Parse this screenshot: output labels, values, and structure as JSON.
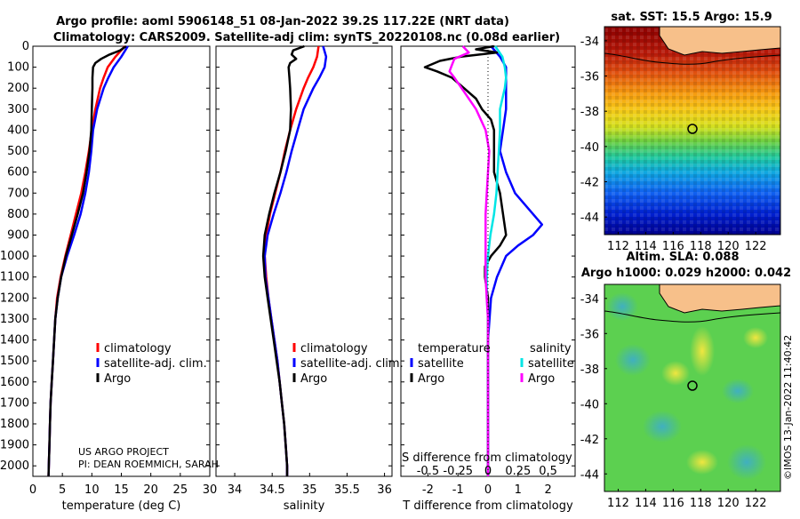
{
  "title": {
    "line1": "Argo profile: aoml 5906148_51 08-Jan-2022 39.2S 117.22E (NRT data)",
    "line2": "Climatology: CARS2009. Satellite-adj clim: synTS_20220108.nc (0.08d earlier)"
  },
  "colors": {
    "climatology": "#ff0000",
    "satellite": "#0000ff",
    "argo": "#000000",
    "sat_salinity": "#00e5e5",
    "argo_salinity": "#ff00ff"
  },
  "chart_data": [
    {
      "type": "line",
      "panel": "temperature",
      "xlabel": "temperature (deg C)",
      "ylabel": "",
      "xlim": [
        0,
        30
      ],
      "ylim": [
        2050,
        0
      ],
      "xticks": [
        "0",
        "5",
        "10",
        "15",
        "20",
        "25",
        "30"
      ],
      "yticks": [
        "0",
        "100",
        "200",
        "300",
        "400",
        "500",
        "600",
        "700",
        "800",
        "900",
        "1000",
        "1100",
        "1200",
        "1300",
        "1400",
        "1500",
        "1600",
        "1700",
        "1800",
        "1900",
        "2000"
      ],
      "legend": [
        "climatology",
        "satellite-adj. clim.",
        "Argo"
      ],
      "legend_position": "lower-right",
      "annotation": [
        "US ARGO PROJECT",
        "PI: DEAN ROEMMICH, SARAH"
      ],
      "series": [
        {
          "name": "climatology",
          "color": "red",
          "depth": [
            0,
            50,
            100,
            150,
            200,
            300,
            400,
            500,
            600,
            700,
            800,
            900,
            1000,
            1100,
            1200,
            1300,
            1400,
            1500,
            1600,
            1700,
            1800,
            1900,
            2000,
            2050
          ],
          "values": [
            15.6,
            14.0,
            12.7,
            12.0,
            11.4,
            10.6,
            10.0,
            9.5,
            8.9,
            8.2,
            7.3,
            6.4,
            5.5,
            4.7,
            4.1,
            3.8,
            3.6,
            3.4,
            3.2,
            3.0,
            2.9,
            2.8,
            2.7,
            2.65
          ]
        },
        {
          "name": "satellite-adj. clim.",
          "color": "blue",
          "depth": [
            0,
            50,
            100,
            150,
            200,
            300,
            400,
            500,
            600,
            700,
            800,
            900,
            1000,
            1100,
            1200,
            1300,
            1400,
            1500,
            1600,
            1700,
            1800,
            1900,
            2000,
            2050
          ],
          "values": [
            16.1,
            15.0,
            13.7,
            12.8,
            12.0,
            10.9,
            10.2,
            9.9,
            9.5,
            8.9,
            8.1,
            7.0,
            5.8,
            4.8,
            4.2,
            3.8,
            3.6,
            3.4,
            3.2,
            3.0,
            2.9,
            2.8,
            2.7,
            2.65
          ]
        },
        {
          "name": "Argo",
          "color": "black",
          "depth": [
            0,
            20,
            40,
            60,
            80,
            100,
            150,
            200,
            300,
            400,
            500,
            600,
            700,
            800,
            900,
            1000,
            1100,
            1200,
            1300,
            1400,
            1500,
            1600,
            1700,
            1800,
            1900,
            2000,
            2050
          ],
          "values": [
            15.8,
            14.8,
            13.0,
            11.6,
            10.6,
            10.2,
            10.1,
            10.1,
            10.0,
            9.9,
            9.6,
            9.1,
            8.5,
            7.6,
            6.6,
            5.6,
            4.8,
            4.2,
            3.8,
            3.6,
            3.4,
            3.2,
            3.0,
            2.9,
            2.8,
            2.7,
            2.65
          ]
        }
      ]
    },
    {
      "type": "line",
      "panel": "salinity",
      "xlabel": "salinity",
      "xlim": [
        33.75,
        36.1
      ],
      "ylim": [
        2050,
        0
      ],
      "xticks": [
        "34",
        "34.5",
        "35",
        "35.5",
        "36"
      ],
      "legend": [
        "climatology",
        "satellite-adj. clim.",
        "Argo"
      ],
      "legend_position": "lower-right",
      "series": [
        {
          "name": "climatology",
          "color": "red",
          "depth": [
            0,
            50,
            100,
            150,
            200,
            300,
            400,
            500,
            600,
            700,
            800,
            900,
            1000,
            1100,
            1200,
            1300,
            1400,
            1500,
            1600,
            1700,
            1800,
            1900,
            2000,
            2050
          ],
          "values": [
            35.12,
            35.1,
            35.05,
            34.98,
            34.92,
            34.82,
            34.74,
            34.67,
            34.61,
            34.54,
            34.47,
            34.42,
            34.4,
            34.42,
            34.45,
            34.49,
            34.53,
            34.57,
            34.6,
            34.63,
            34.66,
            34.68,
            34.7,
            34.7
          ]
        },
        {
          "name": "satellite-adj. clim.",
          "color": "blue",
          "depth": [
            0,
            50,
            100,
            150,
            200,
            300,
            400,
            500,
            600,
            700,
            800,
            900,
            1000,
            1100,
            1200,
            1300,
            1400,
            1500,
            1600,
            1700,
            1800,
            1900,
            2000,
            2050
          ],
          "values": [
            35.18,
            35.22,
            35.2,
            35.13,
            35.05,
            34.92,
            34.84,
            34.76,
            34.69,
            34.61,
            34.52,
            34.44,
            34.4,
            34.41,
            34.45,
            34.49,
            34.53,
            34.57,
            34.6,
            34.63,
            34.66,
            34.68,
            34.7,
            34.7
          ]
        },
        {
          "name": "Argo",
          "color": "black",
          "depth": [
            0,
            20,
            40,
            60,
            80,
            100,
            150,
            200,
            300,
            400,
            500,
            600,
            700,
            800,
            900,
            1000,
            1100,
            1200,
            1300,
            1400,
            1500,
            1600,
            1700,
            1800,
            1900,
            2000,
            2050
          ],
          "values": [
            34.93,
            34.78,
            34.76,
            34.82,
            34.74,
            34.72,
            34.73,
            34.74,
            34.75,
            34.74,
            34.68,
            34.61,
            34.53,
            34.46,
            34.4,
            34.38,
            34.4,
            34.44,
            34.48,
            34.52,
            34.56,
            34.6,
            34.63,
            34.66,
            34.68,
            34.7,
            34.7
          ]
        }
      ]
    },
    {
      "type": "line",
      "panel": "difference",
      "xlabel": "T difference from climatology",
      "xlim": [
        -2.9,
        2.9
      ],
      "ylim": [
        2050,
        0
      ],
      "xticks": [
        "-2",
        "-1",
        "0",
        "1",
        "2"
      ],
      "secondary_axis_label": "S difference from climatology",
      "secondary_xticks": [
        "-0.5",
        "-0.25",
        "0",
        "0.25",
        "0.5"
      ],
      "legend_left_title": "temperature",
      "legend_right_title": "salinity",
      "legend_left": [
        "satellite",
        "Argo"
      ],
      "legend_right": [
        "satellite",
        "Argo"
      ],
      "series": [
        {
          "name": "temperature satellite",
          "color": "blue",
          "depth": [
            0,
            50,
            100,
            200,
            300,
            400,
            500,
            600,
            700,
            800,
            850,
            900,
            950,
            1000,
            1100,
            1200,
            1300,
            1400,
            1600,
            1800,
            2000,
            2050
          ],
          "values": [
            0.1,
            0.4,
            0.6,
            0.6,
            0.6,
            0.5,
            0.4,
            0.6,
            0.9,
            1.5,
            1.8,
            1.5,
            1.0,
            0.6,
            0.3,
            0.1,
            0.05,
            0.0,
            0.0,
            0.0,
            0.0,
            0.0
          ]
        },
        {
          "name": "temperature Argo",
          "color": "black",
          "depth": [
            0,
            15,
            30,
            50,
            70,
            100,
            120,
            150,
            200,
            250,
            300,
            350,
            400,
            500,
            600,
            700,
            800,
            900,
            950,
            1000,
            1050,
            1100,
            1200,
            1300,
            1400,
            1600,
            1800,
            2000,
            2050
          ],
          "values": [
            0.2,
            -0.4,
            0.3,
            -0.9,
            -1.6,
            -2.1,
            -1.7,
            -1.2,
            -0.8,
            -0.4,
            -0.2,
            0.1,
            0.2,
            0.2,
            0.2,
            0.4,
            0.5,
            0.6,
            0.4,
            0.1,
            -0.1,
            -0.1,
            0.0,
            0.0,
            0.0,
            0.0,
            0.0,
            0.0,
            0.0
          ]
        },
        {
          "name": "salinity satellite",
          "color": "cyan",
          "depth": [
            0,
            50,
            100,
            150,
            200,
            300,
            400,
            500,
            600,
            700,
            800,
            900,
            1000,
            1100,
            1200,
            1300,
            1400,
            1600,
            1800,
            2000,
            2050
          ],
          "values": [
            0.06,
            0.12,
            0.14,
            0.15,
            0.14,
            0.1,
            0.1,
            0.09,
            0.08,
            0.07,
            0.05,
            0.02,
            0.0,
            -0.01,
            -0.01,
            0.0,
            0.0,
            0.0,
            0.0,
            0.0,
            0.0
          ]
        },
        {
          "name": "salinity Argo",
          "color": "magenta",
          "depth": [
            0,
            30,
            60,
            90,
            120,
            150,
            200,
            300,
            400,
            500,
            600,
            700,
            800,
            900,
            1000,
            1100,
            1200,
            1300,
            1400,
            1600,
            1800,
            2000,
            2050
          ],
          "values": [
            -0.21,
            -0.16,
            -0.28,
            -0.3,
            -0.32,
            -0.28,
            -0.22,
            -0.1,
            -0.02,
            0.01,
            0.0,
            -0.01,
            -0.02,
            -0.02,
            -0.02,
            -0.02,
            -0.01,
            0.0,
            0.0,
            0.0,
            0.0,
            0.0,
            0.0
          ]
        }
      ]
    },
    {
      "type": "heatmap",
      "panel": "sst_map",
      "title": "sat. SST: 15.5 Argo: 15.9",
      "xticks": [
        "112",
        "114",
        "116",
        "118",
        "120",
        "122"
      ],
      "yticks": [
        "-34",
        "-36",
        "-38",
        "-40",
        "-42",
        "-44"
      ],
      "xlim": [
        111,
        123.8
      ],
      "ylim": [
        -45,
        -33.2
      ],
      "marker": {
        "lon": 117.22,
        "lat": -39.2
      }
    },
    {
      "type": "heatmap",
      "panel": "sla_map",
      "title_line1": "Altim. SLA: 0.088",
      "title_line2": "Argo h1000: 0.029 h2000: 0.042",
      "xticks": [
        "112",
        "114",
        "116",
        "118",
        "120",
        "122"
      ],
      "yticks": [
        "-34",
        "-36",
        "-38",
        "-40",
        "-42",
        "-44"
      ],
      "xlim": [
        111,
        123.8
      ],
      "ylim": [
        -45,
        -33.2
      ],
      "marker": {
        "lon": 117.22,
        "lat": -39.2
      }
    }
  ],
  "footer": "©IMOS 13-Jan-2022 11:40:42"
}
